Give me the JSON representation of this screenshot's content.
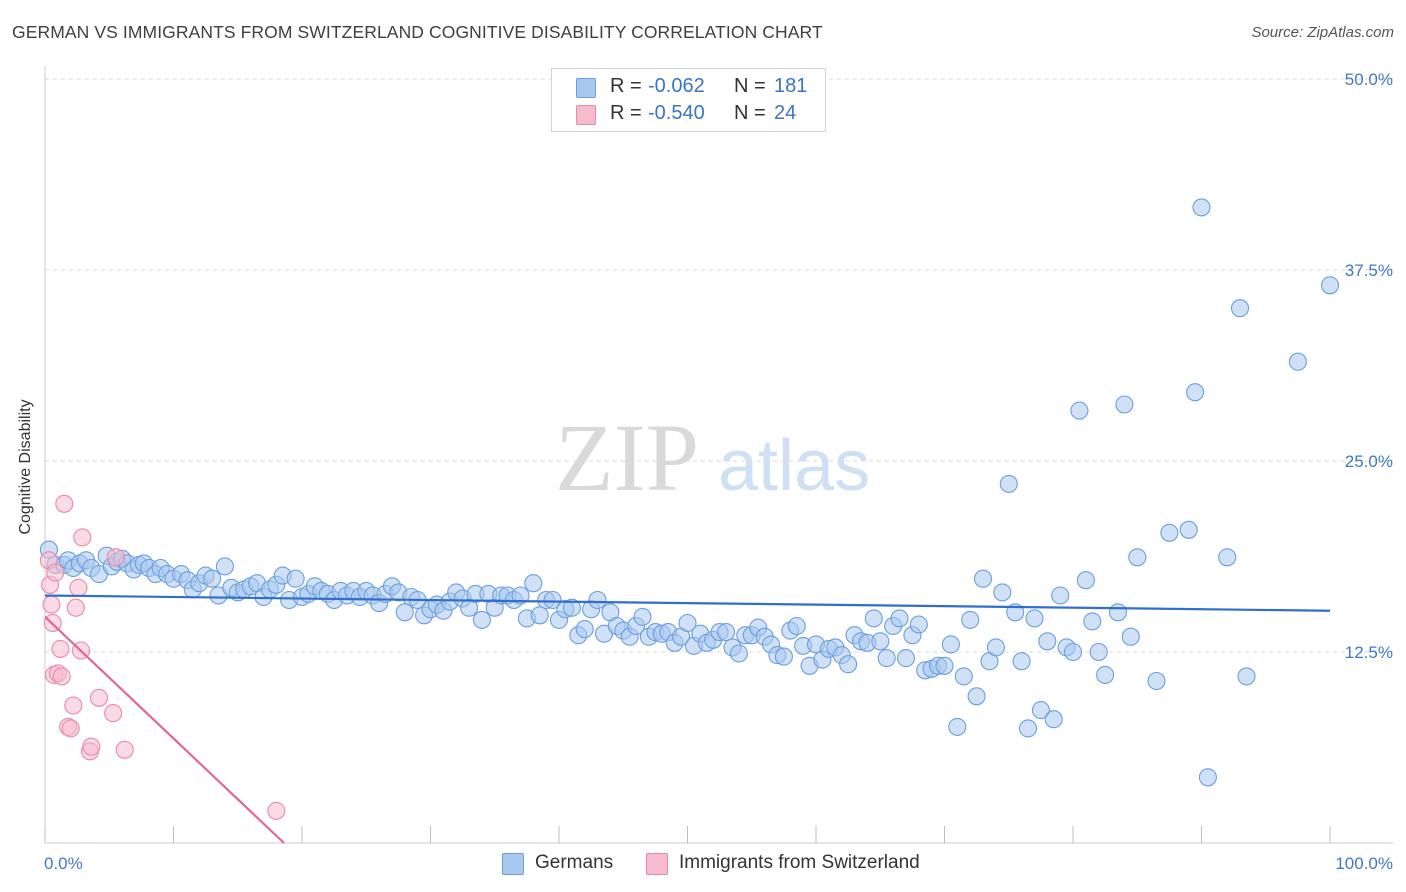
{
  "header": {
    "title": "GERMAN VS IMMIGRANTS FROM SWITZERLAND COGNITIVE DISABILITY CORRELATION CHART",
    "source": "Source: ZipAtlas.com"
  },
  "watermark": {
    "zip": "ZIP",
    "atlas": "atlas"
  },
  "legend": {
    "rows": [
      {
        "r_label": "R =",
        "r_value": "-0.062",
        "n_label": "N =",
        "n_value": "181"
      },
      {
        "r_label": "R =",
        "r_value": "-0.540",
        "n_label": "N =",
        "n_value": "24"
      }
    ]
  },
  "bottom_legend": {
    "series1": "Germans",
    "series2": "Immigrants from Switzerland"
  },
  "colors": {
    "germans_fill": "#a9c8ef",
    "germans_stroke": "#6b9ede",
    "germans_line": "#2f6fcb",
    "swiss_fill": "#f6bccd",
    "swiss_stroke": "#e98aa6",
    "swiss_line": "#e06895",
    "axis_text": "#3f78c8",
    "grid": "#dadada"
  },
  "chart_data": {
    "type": "scatter",
    "title": "GERMAN VS IMMIGRANTS FROM SWITZERLAND COGNITIVE DISABILITY CORRELATION CHART",
    "xlabel": "",
    "ylabel": "Cognitive Disability",
    "x_tick_labels": [
      "0.0%",
      "100.0%"
    ],
    "y_tick_labels": [
      "12.5%",
      "25.0%",
      "37.5%",
      "50.0%"
    ],
    "y_ticks": [
      12.5,
      25.0,
      37.5,
      50.0
    ],
    "xlim": [
      0,
      100
    ],
    "ylim": [
      0,
      50
    ],
    "grid": true,
    "legend_position": "top-center",
    "series": [
      {
        "name": "Germans",
        "r": -0.062,
        "n": 181,
        "trend": {
          "x": [
            0,
            100
          ],
          "y": [
            16.2,
            15.2
          ]
        },
        "points": [
          [
            0.3,
            19.2
          ],
          [
            0.8,
            18.2
          ],
          [
            1.5,
            18.2
          ],
          [
            1.8,
            18.5
          ],
          [
            2.2,
            18.0
          ],
          [
            2.7,
            18.3
          ],
          [
            3.2,
            18.5
          ],
          [
            3.6,
            18.0
          ],
          [
            4.2,
            17.6
          ],
          [
            4.8,
            18.8
          ],
          [
            5.2,
            18.1
          ],
          [
            5.6,
            18.4
          ],
          [
            6.0,
            18.6
          ],
          [
            6.4,
            18.3
          ],
          [
            6.9,
            17.9
          ],
          [
            7.3,
            18.2
          ],
          [
            7.7,
            18.3
          ],
          [
            8.1,
            18.0
          ],
          [
            8.6,
            17.6
          ],
          [
            9.0,
            18.0
          ],
          [
            9.5,
            17.6
          ],
          [
            10.0,
            17.3
          ],
          [
            10.6,
            17.6
          ],
          [
            11.1,
            17.2
          ],
          [
            11.5,
            16.6
          ],
          [
            12.0,
            17.0
          ],
          [
            12.5,
            17.5
          ],
          [
            13.0,
            17.3
          ],
          [
            13.5,
            16.2
          ],
          [
            14.0,
            18.1
          ],
          [
            14.5,
            16.7
          ],
          [
            15.0,
            16.4
          ],
          [
            15.5,
            16.6
          ],
          [
            16.0,
            16.8
          ],
          [
            16.5,
            17.0
          ],
          [
            17.0,
            16.1
          ],
          [
            17.5,
            16.6
          ],
          [
            18.0,
            16.9
          ],
          [
            18.5,
            17.5
          ],
          [
            19.0,
            15.9
          ],
          [
            19.5,
            17.3
          ],
          [
            20.0,
            16.1
          ],
          [
            20.5,
            16.3
          ],
          [
            21.0,
            16.8
          ],
          [
            21.5,
            16.5
          ],
          [
            22.0,
            16.3
          ],
          [
            22.5,
            15.9
          ],
          [
            23.0,
            16.5
          ],
          [
            23.5,
            16.2
          ],
          [
            24.0,
            16.5
          ],
          [
            24.5,
            16.1
          ],
          [
            25.0,
            16.5
          ],
          [
            25.5,
            16.2
          ],
          [
            26.0,
            15.7
          ],
          [
            26.5,
            16.3
          ],
          [
            27.0,
            16.8
          ],
          [
            27.5,
            16.4
          ],
          [
            28.0,
            15.1
          ],
          [
            28.5,
            16.1
          ],
          [
            29.0,
            15.9
          ],
          [
            29.5,
            14.9
          ],
          [
            30.0,
            15.3
          ],
          [
            30.5,
            15.6
          ],
          [
            31.0,
            15.2
          ],
          [
            31.5,
            15.8
          ],
          [
            32.0,
            16.4
          ],
          [
            32.5,
            16.0
          ],
          [
            33.0,
            15.4
          ],
          [
            33.5,
            16.3
          ],
          [
            34.0,
            14.6
          ],
          [
            34.5,
            16.3
          ],
          [
            35.0,
            15.4
          ],
          [
            35.5,
            16.2
          ],
          [
            36.0,
            16.2
          ],
          [
            36.5,
            15.9
          ],
          [
            37.0,
            16.2
          ],
          [
            37.5,
            14.7
          ],
          [
            38.0,
            17.0
          ],
          [
            38.5,
            14.9
          ],
          [
            39.0,
            15.9
          ],
          [
            39.5,
            15.9
          ],
          [
            40.0,
            14.6
          ],
          [
            40.5,
            15.3
          ],
          [
            41.0,
            15.4
          ],
          [
            41.5,
            13.6
          ],
          [
            42.0,
            14.0
          ],
          [
            42.5,
            15.3
          ],
          [
            43.0,
            15.9
          ],
          [
            43.5,
            13.7
          ],
          [
            44.0,
            15.1
          ],
          [
            44.5,
            14.2
          ],
          [
            45.0,
            13.9
          ],
          [
            45.5,
            13.5
          ],
          [
            46.0,
            14.2
          ],
          [
            46.5,
            14.8
          ],
          [
            47.0,
            13.5
          ],
          [
            47.5,
            13.8
          ],
          [
            48.0,
            13.7
          ],
          [
            48.5,
            13.8
          ],
          [
            49.0,
            13.1
          ],
          [
            49.5,
            13.5
          ],
          [
            50.0,
            14.4
          ],
          [
            50.5,
            12.9
          ],
          [
            51.0,
            13.7
          ],
          [
            51.5,
            13.1
          ],
          [
            52.0,
            13.3
          ],
          [
            52.5,
            13.8
          ],
          [
            53.0,
            13.8
          ],
          [
            53.5,
            12.8
          ],
          [
            54.0,
            12.4
          ],
          [
            54.5,
            13.6
          ],
          [
            55.0,
            13.6
          ],
          [
            55.5,
            14.1
          ],
          [
            56.0,
            13.5
          ],
          [
            56.5,
            13.0
          ],
          [
            57.0,
            12.3
          ],
          [
            57.5,
            12.2
          ],
          [
            58.0,
            13.9
          ],
          [
            58.5,
            14.2
          ],
          [
            59.0,
            12.9
          ],
          [
            59.5,
            11.6
          ],
          [
            60.0,
            13.0
          ],
          [
            60.5,
            12.0
          ],
          [
            61.0,
            12.7
          ],
          [
            61.5,
            12.8
          ],
          [
            62.0,
            12.3
          ],
          [
            62.5,
            11.7
          ],
          [
            63.0,
            13.6
          ],
          [
            63.5,
            13.2
          ],
          [
            64.0,
            13.1
          ],
          [
            64.5,
            14.7
          ],
          [
            65.0,
            13.2
          ],
          [
            65.5,
            12.1
          ],
          [
            66.0,
            14.2
          ],
          [
            66.5,
            14.7
          ],
          [
            67.0,
            12.1
          ],
          [
            67.5,
            13.6
          ],
          [
            68.0,
            14.3
          ],
          [
            68.5,
            11.3
          ],
          [
            69.0,
            11.4
          ],
          [
            69.5,
            11.6
          ],
          [
            70.0,
            11.6
          ],
          [
            70.5,
            13.0
          ],
          [
            71.0,
            7.6
          ],
          [
            71.5,
            10.9
          ],
          [
            72.0,
            14.6
          ],
          [
            72.5,
            9.6
          ],
          [
            73.0,
            17.3
          ],
          [
            73.5,
            11.9
          ],
          [
            74.0,
            12.8
          ],
          [
            74.5,
            16.4
          ],
          [
            75.0,
            23.5
          ],
          [
            75.5,
            15.1
          ],
          [
            76.0,
            11.9
          ],
          [
            76.5,
            7.5
          ],
          [
            77.0,
            14.7
          ],
          [
            77.5,
            8.7
          ],
          [
            78.0,
            13.2
          ],
          [
            78.5,
            8.1
          ],
          [
            79.0,
            16.2
          ],
          [
            79.5,
            12.8
          ],
          [
            80.0,
            12.5
          ],
          [
            80.5,
            28.3
          ],
          [
            81.0,
            17.2
          ],
          [
            81.5,
            14.5
          ],
          [
            82.0,
            12.5
          ],
          [
            82.5,
            11.0
          ],
          [
            83.5,
            15.1
          ],
          [
            84.0,
            28.7
          ],
          [
            84.5,
            13.5
          ],
          [
            85.0,
            18.7
          ],
          [
            86.5,
            10.6
          ],
          [
            87.5,
            20.3
          ],
          [
            89.0,
            20.5
          ],
          [
            89.5,
            29.5
          ],
          [
            90.0,
            41.6
          ],
          [
            90.5,
            4.3
          ],
          [
            92.0,
            18.7
          ],
          [
            93.0,
            35.0
          ],
          [
            93.5,
            10.9
          ],
          [
            97.5,
            31.5
          ],
          [
            100.0,
            36.5
          ]
        ]
      },
      {
        "name": "Immigrants from Switzerland",
        "r": -0.54,
        "n": 24,
        "trend": {
          "x": [
            0,
            18.6
          ],
          "y": [
            14.8,
            0
          ]
        },
        "points": [
          [
            0.3,
            18.5
          ],
          [
            0.4,
            16.9
          ],
          [
            0.5,
            15.6
          ],
          [
            0.6,
            14.4
          ],
          [
            0.7,
            11.0
          ],
          [
            0.8,
            17.7
          ],
          [
            1.0,
            11.1
          ],
          [
            1.2,
            12.7
          ],
          [
            1.3,
            10.9
          ],
          [
            1.5,
            22.2
          ],
          [
            1.8,
            7.6
          ],
          [
            2.0,
            7.5
          ],
          [
            2.2,
            9.0
          ],
          [
            2.4,
            15.4
          ],
          [
            2.6,
            16.7
          ],
          [
            2.8,
            12.6
          ],
          [
            2.9,
            20.0
          ],
          [
            3.5,
            6.0
          ],
          [
            3.6,
            6.3
          ],
          [
            4.2,
            9.5
          ],
          [
            5.3,
            8.5
          ],
          [
            5.5,
            18.7
          ],
          [
            6.2,
            6.1
          ],
          [
            18.0,
            2.1
          ]
        ]
      }
    ]
  }
}
